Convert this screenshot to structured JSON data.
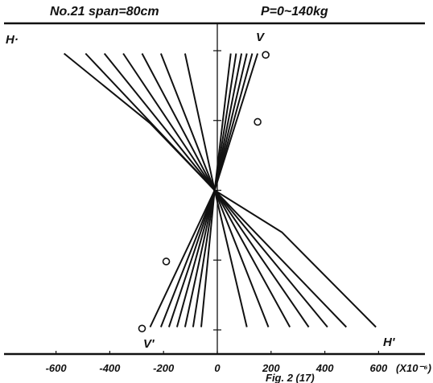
{
  "chart_data": {
    "type": "line",
    "title_left": "No.21  span=80cm",
    "title_right": "P=0~140kg",
    "x_unit": "(X10⁻⁶)",
    "x_ticks": [
      "-600",
      "-400",
      "-200",
      "0",
      "200",
      "400",
      "600"
    ],
    "x_tick_values": [
      -600,
      -400,
      -200,
      0,
      200,
      400,
      600
    ],
    "xlim": [
      -700,
      700
    ],
    "footer_note": "Fig. 2 (17)",
    "label_H": "H·",
    "label_V": "V",
    "label_Hprime": "H'",
    "label_Vprime": "V'",
    "y_tick_count": 5,
    "pivot": {
      "x": -10,
      "depth": 0.5
    },
    "series_upper": [
      {
        "name": "H",
        "points": [
          [
            -570,
            0.01
          ],
          [
            -250,
            0.26
          ],
          [
            -10,
            0.5
          ]
        ]
      },
      {
        "name": "",
        "points": [
          [
            -490,
            0.01
          ],
          [
            -10,
            0.5
          ]
        ]
      },
      {
        "name": "",
        "points": [
          [
            -420,
            0.01
          ],
          [
            -10,
            0.5
          ]
        ]
      },
      {
        "name": "",
        "points": [
          [
            -350,
            0.01
          ],
          [
            -10,
            0.5
          ]
        ]
      },
      {
        "name": "",
        "points": [
          [
            -280,
            0.01
          ],
          [
            -10,
            0.5
          ]
        ]
      },
      {
        "name": "",
        "points": [
          [
            -210,
            0.01
          ],
          [
            -10,
            0.5
          ]
        ]
      },
      {
        "name": "",
        "points": [
          [
            -120,
            0.01
          ],
          [
            -10,
            0.5
          ]
        ]
      },
      {
        "name": "",
        "points": [
          [
            50,
            0.01
          ],
          [
            -10,
            0.5
          ]
        ]
      },
      {
        "name": "",
        "points": [
          [
            70,
            0.01
          ],
          [
            -10,
            0.5
          ]
        ]
      },
      {
        "name": "",
        "points": [
          [
            90,
            0.01
          ],
          [
            -10,
            0.5
          ]
        ]
      },
      {
        "name": "",
        "points": [
          [
            110,
            0.01
          ],
          [
            -10,
            0.5
          ]
        ]
      },
      {
        "name": "",
        "points": [
          [
            130,
            0.01
          ],
          [
            -10,
            0.5
          ]
        ]
      },
      {
        "name": "",
        "points": [
          [
            150,
            0.01
          ],
          [
            -10,
            0.5
          ]
        ]
      }
    ],
    "series_lower": [
      {
        "name": "",
        "points": [
          [
            -10,
            0.5
          ],
          [
            -250,
            0.99
          ]
        ]
      },
      {
        "name": "",
        "points": [
          [
            -10,
            0.5
          ],
          [
            -210,
            0.99
          ]
        ]
      },
      {
        "name": "",
        "points": [
          [
            -10,
            0.5
          ],
          [
            -180,
            0.99
          ]
        ]
      },
      {
        "name": "",
        "points": [
          [
            -10,
            0.5
          ],
          [
            -150,
            0.99
          ]
        ]
      },
      {
        "name": "",
        "points": [
          [
            -10,
            0.5
          ],
          [
            -120,
            0.99
          ]
        ]
      },
      {
        "name": "",
        "points": [
          [
            -10,
            0.5
          ],
          [
            -90,
            0.99
          ]
        ]
      },
      {
        "name": "",
        "points": [
          [
            -10,
            0.5
          ],
          [
            -60,
            0.99
          ]
        ]
      },
      {
        "name": "",
        "points": [
          [
            -10,
            0.5
          ],
          [
            110,
            0.99
          ]
        ]
      },
      {
        "name": "",
        "points": [
          [
            -10,
            0.5
          ],
          [
            190,
            0.99
          ]
        ]
      },
      {
        "name": "",
        "points": [
          [
            -10,
            0.5
          ],
          [
            270,
            0.99
          ]
        ]
      },
      {
        "name": "",
        "points": [
          [
            -10,
            0.5
          ],
          [
            340,
            0.99
          ]
        ]
      },
      {
        "name": "",
        "points": [
          [
            -10,
            0.5
          ],
          [
            410,
            0.99
          ]
        ]
      },
      {
        "name": "",
        "points": [
          [
            -10,
            0.5
          ],
          [
            480,
            0.99
          ]
        ]
      },
      {
        "name": "H'",
        "points": [
          [
            -10,
            0.5
          ],
          [
            240,
            0.65
          ],
          [
            590,
            0.99
          ]
        ]
      }
    ],
    "markers": [
      {
        "x": 180,
        "depth": 0.015
      },
      {
        "x": 150,
        "depth": 0.255
      },
      {
        "x": -190,
        "depth": 0.755
      },
      {
        "x": -280,
        "depth": 0.995
      }
    ]
  }
}
